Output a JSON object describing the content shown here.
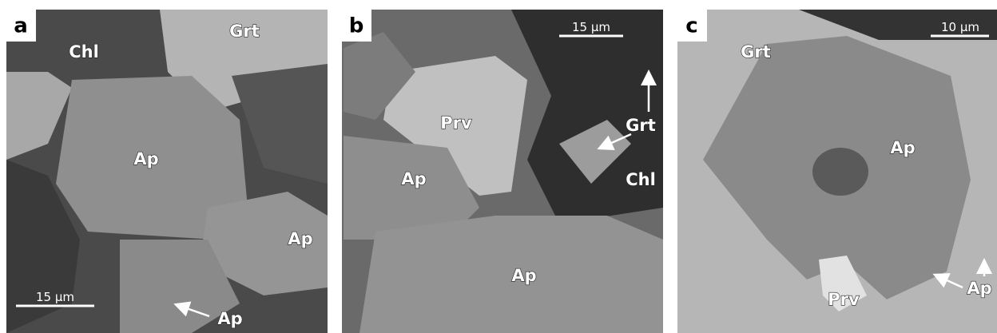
{
  "panels": [
    {
      "label": "a",
      "scale_bar": "15 µm",
      "annotations": [
        "Chl",
        "Grt",
        "Ap",
        "Ap",
        "Ap"
      ]
    },
    {
      "label": "b",
      "scale_bar": "15 µm",
      "annotations": [
        "Prv",
        "Grt",
        "Chl",
        "Ap",
        "Ap"
      ]
    },
    {
      "label": "c",
      "scale_bar": "10 µm",
      "annotations": [
        "Grt",
        "Ap",
        "Prv",
        "Ap"
      ]
    }
  ]
}
